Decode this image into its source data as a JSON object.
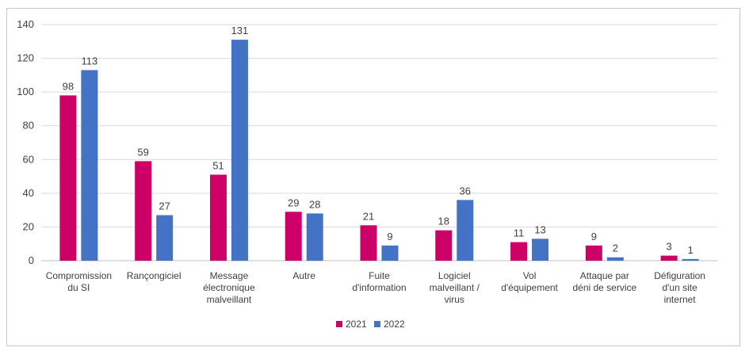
{
  "chart_data": {
    "type": "bar",
    "title": "",
    "xlabel": "",
    "ylabel": "",
    "categories": [
      [
        "Compromission",
        "du SI"
      ],
      [
        "Rançongiciel"
      ],
      [
        "Message",
        "électronique",
        "malveillant"
      ],
      [
        "Autre"
      ],
      [
        "Fuite",
        "d'information"
      ],
      [
        "Logiciel",
        "malveillant /",
        "virus"
      ],
      [
        "Vol",
        "d'équipement"
      ],
      [
        "Attaque par",
        "déni de service"
      ],
      [
        "Défiguration",
        "d'un site",
        "internet"
      ]
    ],
    "series": [
      {
        "name": "2021",
        "color": "#CC0066",
        "values": [
          98,
          59,
          51,
          29,
          21,
          18,
          11,
          9,
          3
        ]
      },
      {
        "name": "2022",
        "color": "#4472C4",
        "values": [
          113,
          27,
          131,
          28,
          9,
          36,
          13,
          2,
          1
        ]
      }
    ],
    "ylim": [
      0,
      140
    ],
    "yticks": [
      0,
      20,
      40,
      60,
      80,
      100,
      120,
      140
    ],
    "grid": true,
    "legend_position": "bottom-center"
  }
}
